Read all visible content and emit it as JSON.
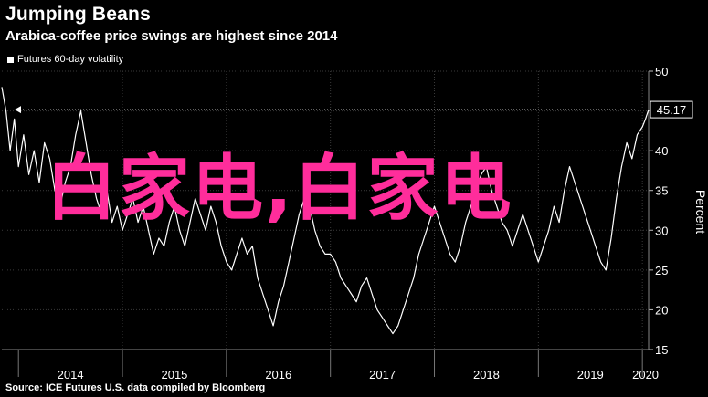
{
  "header": {
    "title": "Jumping Beans",
    "subtitle": "Arabica-coffee price swings are highest since 2014"
  },
  "legend": {
    "label": "Futures 60-day volatility"
  },
  "footer": {
    "source": "Source: ICE Futures U.S. data compiled by Bloomberg"
  },
  "overlay": {
    "text": "白家电,白家电",
    "color": "#ff2d9b"
  },
  "chart_data": {
    "type": "line",
    "ylabel": "Percent",
    "ylim": [
      15,
      50
    ],
    "yticks": [
      "15",
      "20",
      "25",
      "30",
      "35",
      "40",
      "45",
      "50"
    ],
    "xlim": [
      2013.84,
      2020.06
    ],
    "xticks": [
      {
        "label": "2014",
        "year": 2014
      },
      {
        "label": "2015",
        "year": 2015
      },
      {
        "label": "2016",
        "year": 2016
      },
      {
        "label": "2017",
        "year": 2017
      },
      {
        "label": "2018",
        "year": 2018
      },
      {
        "label": "2019",
        "year": 2019
      },
      {
        "label": "2020",
        "year": 2020
      }
    ],
    "grid": true,
    "line_color": "#ffffff",
    "last_value": 45.17,
    "last_value_label": "45.17",
    "series": [
      {
        "x": [
          2013.84,
          2013.88,
          2013.92,
          2013.96,
          2014.0,
          2014.05,
          2014.1,
          2014.15,
          2014.2,
          2014.25,
          2014.3,
          2014.35,
          2014.4,
          2014.45,
          2014.5,
          2014.55,
          2014.6,
          2014.65,
          2014.7,
          2014.75,
          2014.8,
          2014.85,
          2014.9,
          2014.95,
          2015.0,
          2015.05,
          2015.1,
          2015.15,
          2015.2,
          2015.25,
          2015.3,
          2015.35,
          2015.4,
          2015.45,
          2015.5,
          2015.55,
          2015.6,
          2015.65,
          2015.7,
          2015.75,
          2015.8,
          2015.85,
          2015.9,
          2015.95,
          2016.0,
          2016.05,
          2016.1,
          2016.15,
          2016.2,
          2016.25,
          2016.3,
          2016.35,
          2016.4,
          2016.45,
          2016.5,
          2016.55,
          2016.6,
          2016.65,
          2016.7,
          2016.75,
          2016.8,
          2016.85,
          2016.9,
          2016.95,
          2017.0,
          2017.05,
          2017.1,
          2017.15,
          2017.2,
          2017.25,
          2017.3,
          2017.35,
          2017.4,
          2017.45,
          2017.5,
          2017.55,
          2017.6,
          2017.65,
          2017.7,
          2017.75,
          2017.8,
          2017.85,
          2017.9,
          2017.95,
          2018.0,
          2018.05,
          2018.1,
          2018.15,
          2018.2,
          2018.25,
          2018.3,
          2018.35,
          2018.4,
          2018.45,
          2018.5,
          2018.55,
          2018.6,
          2018.65,
          2018.7,
          2018.75,
          2018.8,
          2018.85,
          2018.9,
          2018.95,
          2019.0,
          2019.05,
          2019.1,
          2019.15,
          2019.2,
          2019.25,
          2019.3,
          2019.35,
          2019.4,
          2019.45,
          2019.5,
          2019.55,
          2019.6,
          2019.65,
          2019.7,
          2019.75,
          2019.8,
          2019.85,
          2019.9,
          2019.95,
          2020.0,
          2020.03,
          2020.06
        ],
        "y": [
          48,
          45,
          40,
          44,
          38,
          42,
          37,
          40,
          36,
          41,
          39,
          35,
          33,
          36,
          38,
          42,
          45,
          41,
          37,
          34,
          32,
          35,
          31,
          33,
          30,
          32,
          34,
          31,
          33,
          30,
          27,
          29,
          28,
          31,
          33,
          30,
          28,
          31,
          34,
          32,
          30,
          33,
          31,
          28,
          26,
          25,
          27,
          29,
          27,
          28,
          24,
          22,
          20,
          18,
          21,
          23,
          26,
          29,
          32,
          34,
          33,
          30,
          28,
          27,
          27,
          26,
          24,
          23,
          22,
          21,
          23,
          24,
          22,
          20,
          19,
          18,
          17,
          18,
          20,
          22,
          24,
          27,
          29,
          31,
          33,
          31,
          29,
          27,
          26,
          28,
          31,
          33,
          35,
          37,
          38,
          35,
          33,
          31,
          30,
          28,
          30,
          32,
          30,
          28,
          26,
          28,
          30,
          33,
          31,
          35,
          38,
          36,
          34,
          32,
          30,
          28,
          26,
          25,
          29,
          34,
          38,
          41,
          39,
          42,
          43,
          44,
          45.17
        ]
      }
    ]
  }
}
